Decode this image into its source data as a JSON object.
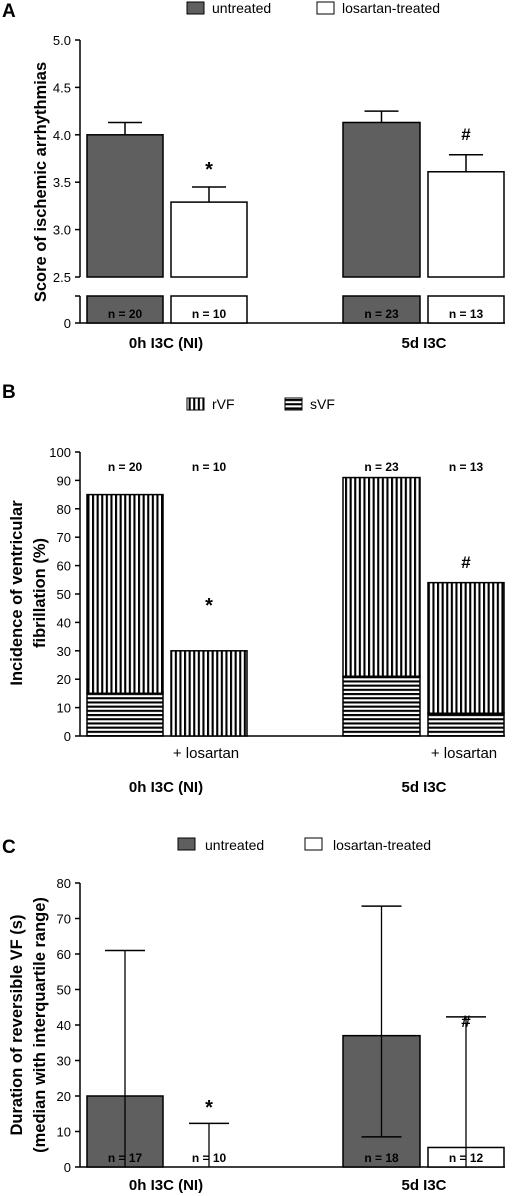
{
  "colors": {
    "untreated": "#5f5f5f",
    "treated": "#ffffff",
    "line": "#000000"
  },
  "chart_data": [
    {
      "panel": "A",
      "type": "bar",
      "legend": [
        "untreated",
        "losartan-treated"
      ],
      "legend_position": "top",
      "ylabel": "Score of ischemic arrhythmias",
      "yticks": [
        "5.0",
        "4.5",
        "4.0",
        "3.5",
        "3.0",
        "2.5",
        "0"
      ],
      "ylim": [
        2.5,
        5.0
      ],
      "axis_break": true,
      "groups": [
        "0h I3C (NI)",
        "5d I3C"
      ],
      "series": [
        {
          "name": "untreated",
          "values": [
            4.0,
            4.13
          ],
          "errors": [
            0.13,
            0.12
          ],
          "n": [
            "n = 20",
            "n = 23"
          ]
        },
        {
          "name": "losartan-treated",
          "values": [
            3.29,
            3.61
          ],
          "errors": [
            0.16,
            0.18
          ],
          "n": [
            "n = 10",
            "n = 13"
          ]
        }
      ],
      "significance": [
        "*",
        "#"
      ]
    },
    {
      "panel": "B",
      "type": "bar",
      "stacked": true,
      "legend": [
        "rVF",
        "sVF"
      ],
      "legend_position": "top",
      "ylabel_lines": [
        "Incidence of ventricular",
        "fibrillation (%)"
      ],
      "yticks": [
        "100",
        "90",
        "80",
        "70",
        "60",
        "50",
        "40",
        "30",
        "20",
        "10",
        "0"
      ],
      "ylim": [
        0,
        100
      ],
      "groups": [
        "0h I3C (NI)",
        "5d I3C"
      ],
      "sublabels": [
        "+ losartan",
        "+ losartan"
      ],
      "bars": [
        {
          "total": 85,
          "sVF": 15,
          "n": "n = 20"
        },
        {
          "total": 30,
          "sVF": 0,
          "n": "n = 10"
        },
        {
          "total": 91,
          "sVF": 21,
          "n": "n = 23"
        },
        {
          "total": 54,
          "sVF": 8,
          "n": "n = 13"
        }
      ],
      "significance": [
        "*",
        "#"
      ]
    },
    {
      "panel": "C",
      "type": "bar",
      "legend": [
        "untreated",
        "losartan-treated"
      ],
      "legend_position": "top",
      "ylabel_lines": [
        "Duration of reversible VF (s)",
        "(median with interquartile range)"
      ],
      "yticks": [
        "80",
        "70",
        "60",
        "50",
        "40",
        "30",
        "20",
        "10",
        "0"
      ],
      "ylim": [
        0,
        80
      ],
      "groups": [
        "0h I3C (NI)",
        "5d I3C"
      ],
      "series": [
        {
          "name": "untreated",
          "values": [
            20,
            37
          ],
          "iqr": [
            [
              0,
              61
            ],
            [
              8.5,
              73.5
            ]
          ],
          "n": [
            "n = 17",
            "n = 18"
          ]
        },
        {
          "name": "losartan-treated",
          "values": [
            0,
            5.5
          ],
          "iqr": [
            [
              0,
              12.3
            ],
            [
              0,
              42.3
            ]
          ],
          "n": [
            "n = 10",
            "n = 12"
          ]
        }
      ],
      "significance": [
        "*",
        "#"
      ]
    }
  ]
}
